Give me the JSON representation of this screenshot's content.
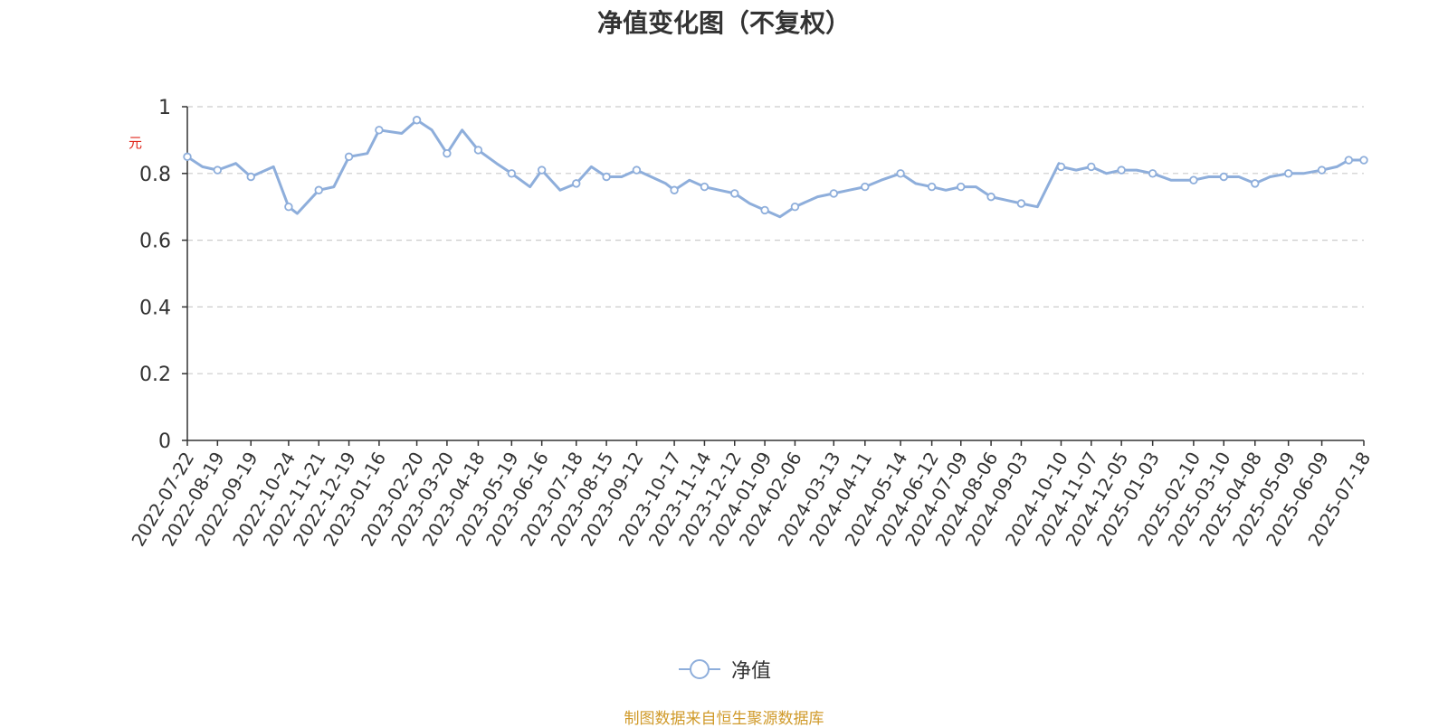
{
  "chart_data": {
    "type": "line",
    "title": "净值变化图（不复权）",
    "ylabel": "元",
    "ylim": [
      0,
      1
    ],
    "y_ticks": [
      "0",
      "0.2",
      "0.4",
      "0.6",
      "0.8",
      "1"
    ],
    "grid": true,
    "legend_position": "bottom-center",
    "x_tick_labels": [
      "2022-07-22",
      "2022-08-19",
      "2022-09-19",
      "2022-10-24",
      "2022-11-21",
      "2022-12-19",
      "2023-01-16",
      "2023-02-20",
      "2023-03-20",
      "2023-04-18",
      "2023-05-19",
      "2023-06-16",
      "2023-07-18",
      "2023-08-15",
      "2023-09-12",
      "2023-10-17",
      "2023-11-14",
      "2023-12-12",
      "2024-01-09",
      "2024-02-06",
      "2024-03-13",
      "2024-04-11",
      "2024-05-14",
      "2024-06-12",
      "2024-07-09",
      "2024-08-06",
      "2024-09-03",
      "2024-10-10",
      "2024-11-07",
      "2024-12-05",
      "2025-01-03",
      "2025-02-10",
      "2025-03-10",
      "2025-04-08",
      "2025-05-09",
      "2025-06-09",
      "2025-07-18"
    ],
    "series": [
      {
        "name": "净值",
        "color": "#8eaedb",
        "x": [
          "2022-07-22",
          "2022-08-05",
          "2022-08-19",
          "2022-09-05",
          "2022-09-19",
          "2022-10-10",
          "2022-10-24",
          "2022-11-01",
          "2022-11-21",
          "2022-12-05",
          "2022-12-19",
          "2023-01-05",
          "2023-01-16",
          "2023-02-06",
          "2023-02-20",
          "2023-03-06",
          "2023-03-20",
          "2023-04-03",
          "2023-04-18",
          "2023-05-05",
          "2023-05-19",
          "2023-06-05",
          "2023-06-16",
          "2023-07-03",
          "2023-07-18",
          "2023-08-01",
          "2023-08-15",
          "2023-08-29",
          "2023-09-12",
          "2023-10-09",
          "2023-10-17",
          "2023-10-31",
          "2023-11-14",
          "2023-11-28",
          "2023-12-12",
          "2023-12-26",
          "2024-01-09",
          "2024-01-23",
          "2024-02-06",
          "2024-02-27",
          "2024-03-13",
          "2024-03-27",
          "2024-04-11",
          "2024-04-26",
          "2024-05-14",
          "2024-05-28",
          "2024-06-12",
          "2024-06-25",
          "2024-07-09",
          "2024-07-23",
          "2024-08-06",
          "2024-08-20",
          "2024-09-03",
          "2024-09-18",
          "2024-10-08",
          "2024-10-10",
          "2024-10-24",
          "2024-11-07",
          "2024-11-21",
          "2024-12-05",
          "2024-12-19",
          "2025-01-03",
          "2025-01-20",
          "2025-02-10",
          "2025-02-24",
          "2025-03-10",
          "2025-03-24",
          "2025-04-08",
          "2025-04-22",
          "2025-05-09",
          "2025-05-23",
          "2025-06-09",
          "2025-06-23",
          "2025-07-04",
          "2025-07-18"
        ],
        "values": [
          0.85,
          0.82,
          0.81,
          0.83,
          0.79,
          0.82,
          0.7,
          0.68,
          0.75,
          0.76,
          0.85,
          0.86,
          0.93,
          0.92,
          0.96,
          0.93,
          0.86,
          0.93,
          0.87,
          0.83,
          0.8,
          0.76,
          0.81,
          0.75,
          0.77,
          0.82,
          0.79,
          0.79,
          0.81,
          0.77,
          0.75,
          0.78,
          0.76,
          0.75,
          0.74,
          0.71,
          0.69,
          0.67,
          0.7,
          0.73,
          0.74,
          0.75,
          0.76,
          0.78,
          0.8,
          0.77,
          0.76,
          0.75,
          0.76,
          0.76,
          0.73,
          0.72,
          0.71,
          0.7,
          0.83,
          0.82,
          0.81,
          0.82,
          0.8,
          0.81,
          0.81,
          0.8,
          0.78,
          0.78,
          0.79,
          0.79,
          0.79,
          0.77,
          0.79,
          0.8,
          0.8,
          0.81,
          0.82,
          0.84,
          0.84
        ],
        "markers_at": [
          "2022-07-22",
          "2022-08-19",
          "2022-09-19",
          "2022-10-24",
          "2022-11-21",
          "2022-12-19",
          "2023-01-16",
          "2023-02-20",
          "2023-03-20",
          "2023-04-18",
          "2023-05-19",
          "2023-06-16",
          "2023-07-18",
          "2023-08-15",
          "2023-09-12",
          "2023-10-17",
          "2023-11-14",
          "2023-12-12",
          "2024-01-09",
          "2024-02-06",
          "2024-03-13",
          "2024-04-11",
          "2024-05-14",
          "2024-06-12",
          "2024-07-09",
          "2024-08-06",
          "2024-09-03",
          "2024-10-10",
          "2024-11-07",
          "2024-12-05",
          "2025-01-03",
          "2025-02-10",
          "2025-03-10",
          "2025-04-08",
          "2025-05-09",
          "2025-06-09",
          "2025-07-04",
          "2025-07-18"
        ]
      }
    ]
  },
  "footer": {
    "source_note": "制图数据来自恒生聚源数据库"
  }
}
